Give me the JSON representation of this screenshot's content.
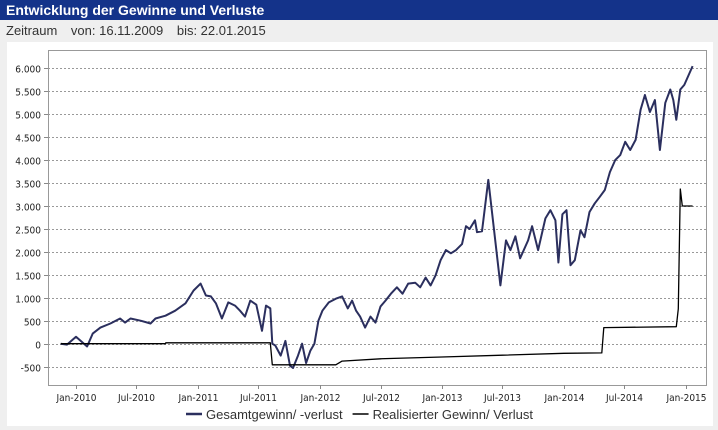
{
  "header": {
    "title": "Entwicklung der Gewinne und Verluste"
  },
  "period": {
    "label": "Zeitraum",
    "from": "von: 16.11.2009",
    "to": "bis: 22.01.2015"
  },
  "chart_data": {
    "type": "line",
    "title": "",
    "xlabel": "",
    "ylabel": "",
    "xlim": [
      "2009-10-09",
      "2015-03-03"
    ],
    "ylim": [
      -900,
      6400
    ],
    "grid": true,
    "legend": "bottom",
    "yticks": [
      6000,
      5500,
      5000,
      4500,
      4000,
      3500,
      3000,
      2500,
      2000,
      1500,
      1000,
      500,
      0,
      -500
    ],
    "ytick_labels": [
      "6.000",
      "5.500",
      "5.000",
      "4.500",
      "4.000",
      "3.500",
      "3.000",
      "2.500",
      "2.000",
      "1.500",
      "1.000",
      "500",
      "0",
      "-500"
    ],
    "xticks": [
      "2010-01-01",
      "2010-07-01",
      "2011-01-01",
      "2011-07-01",
      "2012-01-01",
      "2012-07-01",
      "2013-01-01",
      "2013-07-01",
      "2014-01-01",
      "2014-07-01",
      "2015-01-01"
    ],
    "xtick_labels": [
      "Jan-2010",
      "Jul-2010",
      "Jan-2011",
      "Jul-2011",
      "Jan-2012",
      "Jul-2012",
      "Jan-2013",
      "Jul-2013",
      "Jan-2014",
      "Jul-2014",
      "Jan-2015"
    ],
    "series": [
      {
        "name": "Gesamtgewinn/ -verlust",
        "color": "#2b2f5e",
        "points": [
          [
            "2009-11-16",
            0
          ],
          [
            "2009-12-05",
            -20
          ],
          [
            "2010-01-01",
            150
          ],
          [
            "2010-01-15",
            60
          ],
          [
            "2010-02-03",
            -60
          ],
          [
            "2010-02-20",
            220
          ],
          [
            "2010-03-15",
            350
          ],
          [
            "2010-04-14",
            440
          ],
          [
            "2010-05-13",
            550
          ],
          [
            "2010-05-28",
            460
          ],
          [
            "2010-06-13",
            550
          ],
          [
            "2010-07-15",
            500
          ],
          [
            "2010-08-12",
            440
          ],
          [
            "2010-08-27",
            550
          ],
          [
            "2010-09-26",
            610
          ],
          [
            "2010-10-25",
            720
          ],
          [
            "2010-11-25",
            880
          ],
          [
            "2010-12-19",
            1160
          ],
          [
            "2011-01-09",
            1310
          ],
          [
            "2011-01-25",
            1050
          ],
          [
            "2011-02-09",
            1030
          ],
          [
            "2011-02-24",
            880
          ],
          [
            "2011-03-14",
            550
          ],
          [
            "2011-04-02",
            900
          ],
          [
            "2011-04-22",
            830
          ],
          [
            "2011-05-07",
            720
          ],
          [
            "2011-05-22",
            590
          ],
          [
            "2011-06-07",
            940
          ],
          [
            "2011-06-25",
            850
          ],
          [
            "2011-07-12",
            280
          ],
          [
            "2011-07-24",
            830
          ],
          [
            "2011-08-06",
            770
          ],
          [
            "2011-08-12",
            0
          ],
          [
            "2011-08-21",
            -40
          ],
          [
            "2011-09-06",
            -260
          ],
          [
            "2011-09-20",
            60
          ],
          [
            "2011-10-04",
            -480
          ],
          [
            "2011-10-13",
            -530
          ],
          [
            "2011-10-28",
            -260
          ],
          [
            "2011-11-09",
            0
          ],
          [
            "2011-11-21",
            -420
          ],
          [
            "2011-12-04",
            -150
          ],
          [
            "2011-12-16",
            0
          ],
          [
            "2011-12-28",
            500
          ],
          [
            "2012-01-09",
            720
          ],
          [
            "2012-01-28",
            900
          ],
          [
            "2012-02-18",
            980
          ],
          [
            "2012-03-08",
            1030
          ],
          [
            "2012-03-25",
            770
          ],
          [
            "2012-04-07",
            940
          ],
          [
            "2012-04-19",
            720
          ],
          [
            "2012-05-01",
            590
          ],
          [
            "2012-05-16",
            350
          ],
          [
            "2012-06-01",
            590
          ],
          [
            "2012-06-16",
            460
          ],
          [
            "2012-07-01",
            810
          ],
          [
            "2012-07-16",
            940
          ],
          [
            "2012-08-01",
            1090
          ],
          [
            "2012-08-19",
            1230
          ],
          [
            "2012-09-05",
            1090
          ],
          [
            "2012-09-22",
            1310
          ],
          [
            "2012-10-13",
            1330
          ],
          [
            "2012-10-28",
            1230
          ],
          [
            "2012-11-13",
            1440
          ],
          [
            "2012-11-28",
            1270
          ],
          [
            "2012-12-13",
            1490
          ],
          [
            "2012-12-28",
            1820
          ],
          [
            "2013-01-13",
            2040
          ],
          [
            "2013-01-28",
            1970
          ],
          [
            "2013-02-12",
            2040
          ],
          [
            "2013-03-02",
            2170
          ],
          [
            "2013-03-14",
            2560
          ],
          [
            "2013-03-25",
            2500
          ],
          [
            "2013-04-10",
            2690
          ],
          [
            "2013-04-16",
            2430
          ],
          [
            "2013-05-01",
            2450
          ],
          [
            "2013-05-20",
            3570
          ],
          [
            "2013-06-25",
            1270
          ],
          [
            "2013-07-12",
            2250
          ],
          [
            "2013-07-25",
            2040
          ],
          [
            "2013-08-09",
            2340
          ],
          [
            "2013-08-23",
            1860
          ],
          [
            "2013-09-16",
            2250
          ],
          [
            "2013-09-28",
            2560
          ],
          [
            "2013-10-16",
            2040
          ],
          [
            "2013-11-07",
            2730
          ],
          [
            "2013-11-22",
            2910
          ],
          [
            "2013-12-07",
            2690
          ],
          [
            "2013-12-16",
            1770
          ],
          [
            "2013-12-28",
            2820
          ],
          [
            "2014-01-09",
            2910
          ],
          [
            "2014-01-21",
            1710
          ],
          [
            "2014-02-03",
            1820
          ],
          [
            "2014-02-20",
            2470
          ],
          [
            "2014-03-04",
            2320
          ],
          [
            "2014-03-19",
            2870
          ],
          [
            "2014-04-04",
            3060
          ],
          [
            "2014-04-19",
            3200
          ],
          [
            "2014-05-04",
            3350
          ],
          [
            "2014-05-19",
            3740
          ],
          [
            "2014-06-04",
            4000
          ],
          [
            "2014-06-19",
            4110
          ],
          [
            "2014-07-04",
            4400
          ],
          [
            "2014-07-19",
            4220
          ],
          [
            "2014-08-04",
            4440
          ],
          [
            "2014-08-19",
            5100
          ],
          [
            "2014-09-01",
            5420
          ],
          [
            "2014-09-16",
            5050
          ],
          [
            "2014-10-01",
            5310
          ],
          [
            "2014-10-16",
            4220
          ],
          [
            "2014-11-01",
            5250
          ],
          [
            "2014-11-16",
            5540
          ],
          [
            "2014-11-25",
            5310
          ],
          [
            "2014-12-04",
            4880
          ],
          [
            "2014-12-16",
            5540
          ],
          [
            "2014-12-28",
            5640
          ],
          [
            "2015-01-22",
            6050
          ]
        ]
      },
      {
        "name": "Realisierter Gewinn/ Verlust",
        "color": "#000000",
        "points": [
          [
            "2009-11-16",
            0
          ],
          [
            "2010-09-26",
            0
          ],
          [
            "2010-09-27",
            20
          ],
          [
            "2011-08-06",
            20
          ],
          [
            "2011-08-12",
            -460
          ],
          [
            "2012-02-18",
            -460
          ],
          [
            "2012-03-08",
            -380
          ],
          [
            "2012-07-01",
            -330
          ],
          [
            "2013-01-01",
            -290
          ],
          [
            "2013-07-01",
            -250
          ],
          [
            "2014-01-01",
            -210
          ],
          [
            "2014-04-25",
            -200
          ],
          [
            "2014-05-01",
            350
          ],
          [
            "2014-12-04",
            370
          ],
          [
            "2014-12-10",
            760
          ],
          [
            "2014-12-16",
            3370
          ],
          [
            "2014-12-22",
            3000
          ],
          [
            "2015-01-22",
            3000
          ]
        ]
      }
    ]
  }
}
